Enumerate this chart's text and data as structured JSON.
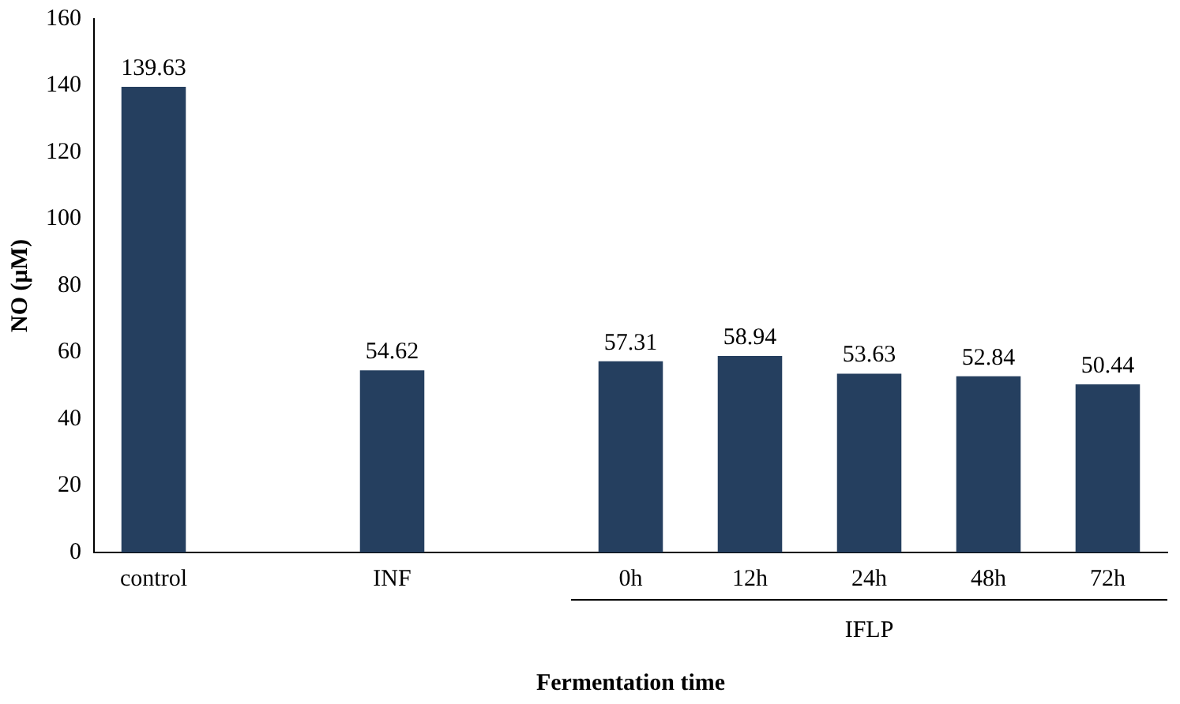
{
  "chart_data": {
    "type": "bar",
    "xlabel": "Fermentation time",
    "ylabel": "NO (μM)",
    "categories": [
      "control",
      null,
      "INF",
      null,
      "0h",
      "12h",
      "24h",
      "48h",
      "72h"
    ],
    "values": [
      139.63,
      null,
      54.62,
      null,
      57.31,
      58.94,
      53.63,
      52.84,
      50.44
    ],
    "color": "#253f5f",
    "ylim": [
      0,
      160
    ],
    "yticks": [
      0,
      20,
      40,
      60,
      80,
      100,
      120,
      140,
      160
    ],
    "grid": false,
    "legend": false,
    "data_labels": true,
    "annotations": [
      "IFLP"
    ]
  }
}
